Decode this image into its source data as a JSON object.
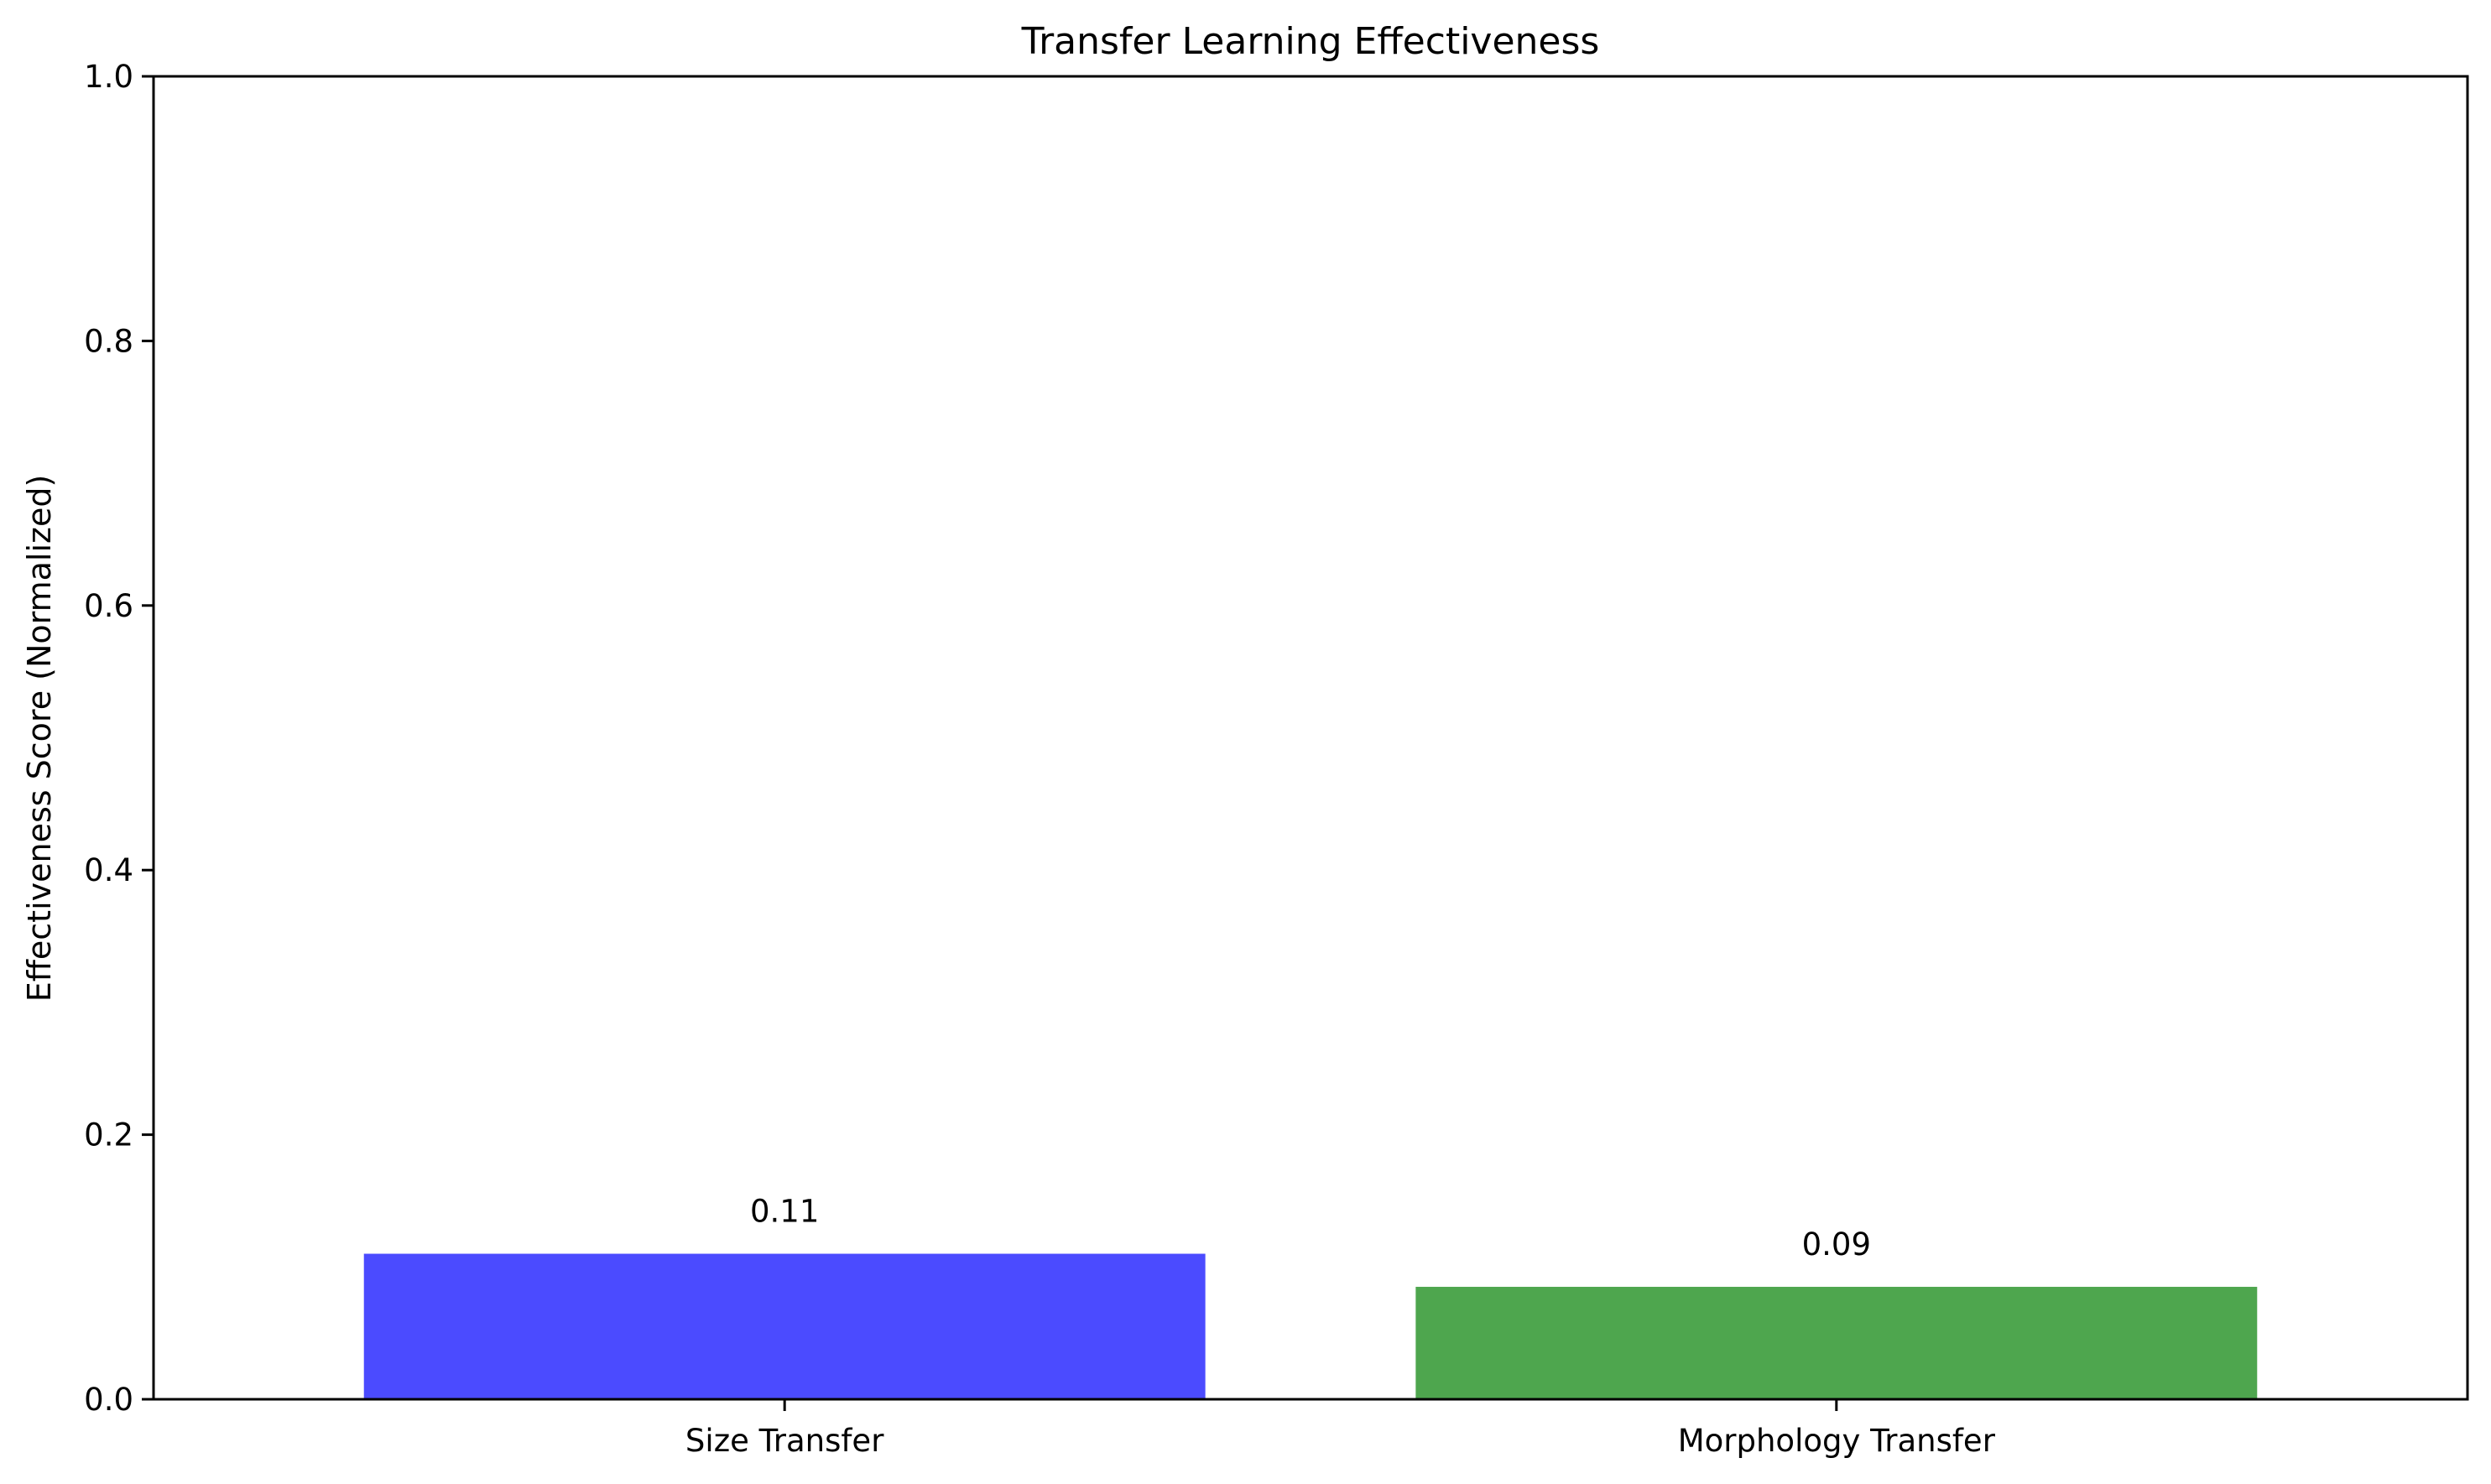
{
  "chart_data": {
    "type": "bar",
    "title": "Transfer Learning Effectiveness",
    "xlabel": "",
    "ylabel": "Effectiveness Score (Normalized)",
    "categories": [
      "Size Transfer",
      "Morphology Transfer"
    ],
    "values": [
      0.11,
      0.085
    ],
    "data_labels": [
      "0.11",
      "0.09"
    ],
    "colors": [
      "#4b4bff",
      "#4ea64e"
    ],
    "ylim": [
      0,
      1.0
    ],
    "yticks": [
      0.0,
      0.2,
      0.4,
      0.6,
      0.8,
      1.0
    ],
    "ytick_labels": [
      "0.0",
      "0.2",
      "0.4",
      "0.6",
      "0.8",
      "1.0"
    ],
    "grid": false,
    "legend": "none"
  }
}
